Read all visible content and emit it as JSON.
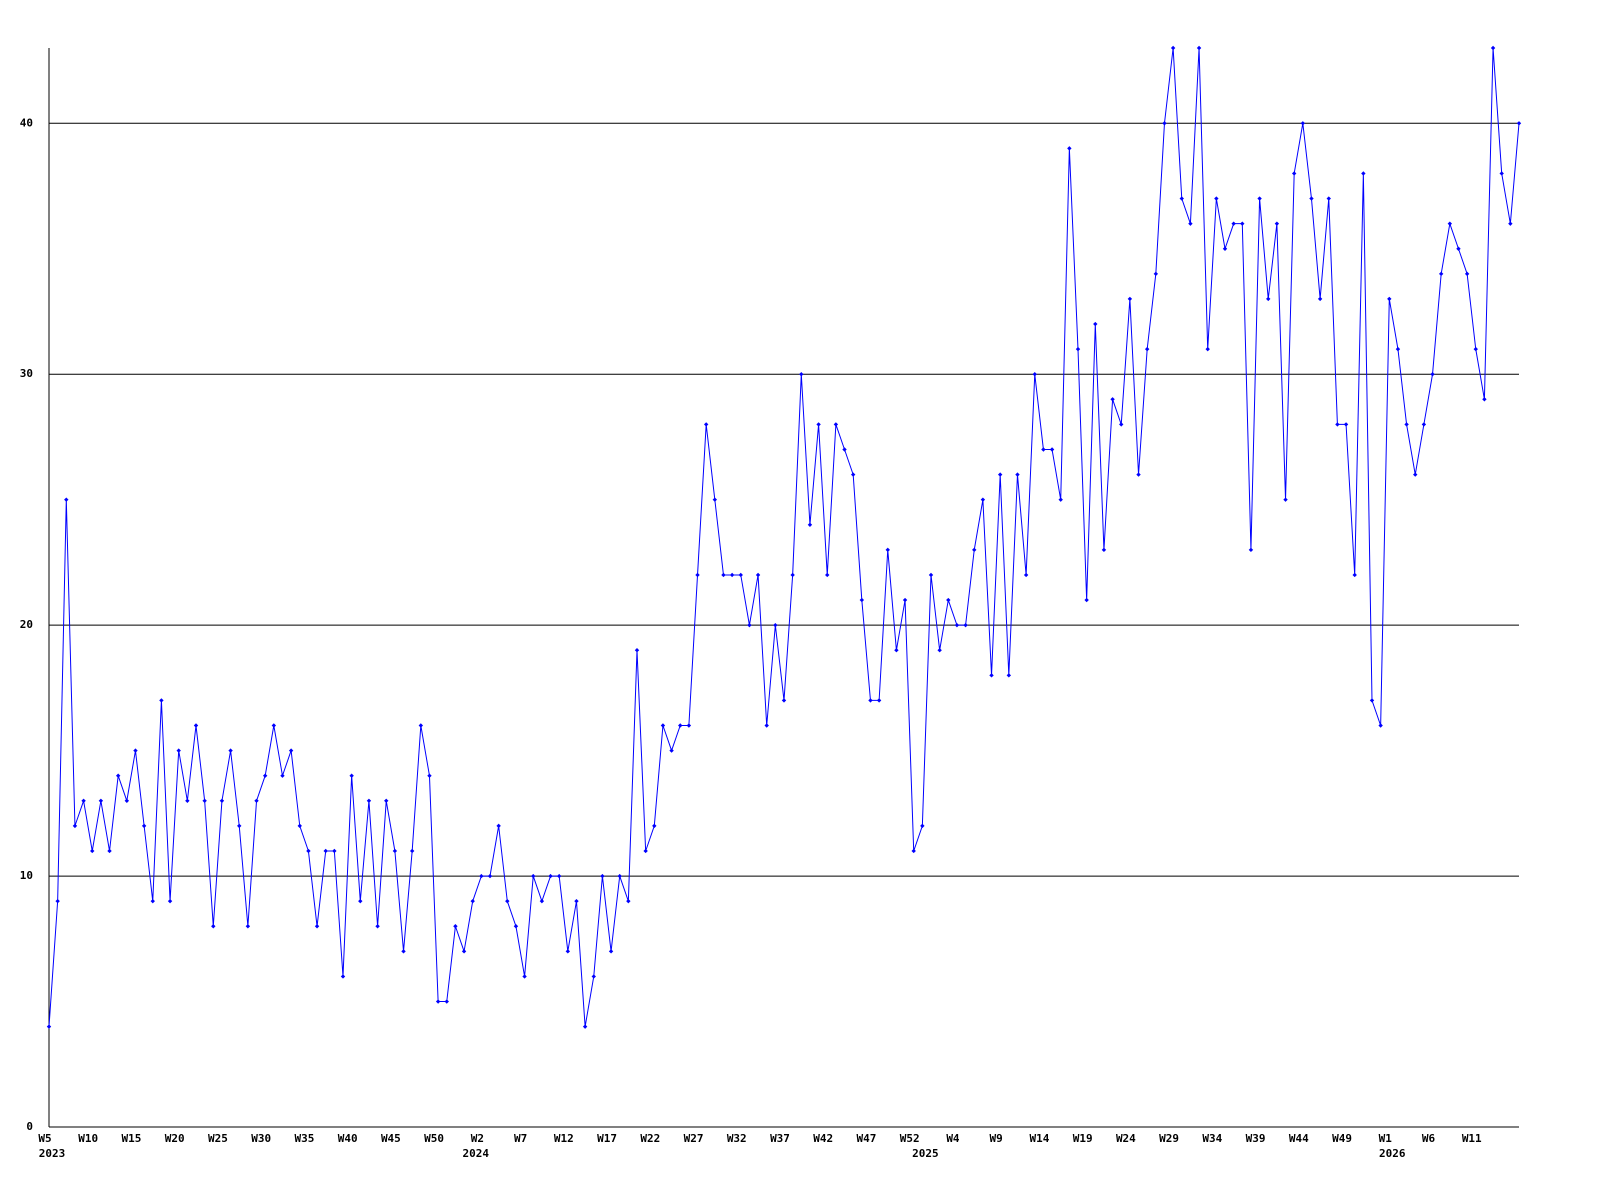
{
  "chart_data": {
    "type": "line",
    "categories": [
      "W5",
      null,
      null,
      null,
      null,
      "W10",
      null,
      null,
      null,
      null,
      "W15",
      null,
      null,
      null,
      null,
      "W20",
      null,
      null,
      null,
      null,
      "W25",
      null,
      null,
      null,
      null,
      "W30",
      null,
      null,
      null,
      null,
      "W35",
      null,
      null,
      null,
      null,
      "W40",
      null,
      null,
      null,
      null,
      "W45",
      null,
      null,
      null,
      null,
      "W50",
      null,
      null,
      null,
      null,
      "W2",
      null,
      null,
      null,
      null,
      "W7",
      null,
      null,
      null,
      null,
      "W12",
      null,
      null,
      null,
      null,
      "W17",
      null,
      null,
      null,
      null,
      "W22",
      null,
      null,
      null,
      null,
      "W27",
      null,
      null,
      null,
      null,
      "W32",
      null,
      null,
      null,
      null,
      "W37",
      null,
      null,
      null,
      null,
      "W42",
      null,
      null,
      null,
      null,
      "W47",
      null,
      null,
      null,
      null,
      "W52",
      null,
      null,
      null,
      null,
      "W4",
      null,
      null,
      null,
      null,
      "W9",
      null,
      null,
      null,
      null,
      "W14",
      null,
      null,
      null,
      null,
      "W19",
      null,
      null,
      null,
      null,
      "W24",
      null,
      null,
      null,
      null,
      "W29",
      null,
      null,
      null,
      null,
      "W34",
      null,
      null,
      null,
      null,
      "W39",
      null,
      null,
      null,
      null,
      "W44",
      null,
      null,
      null,
      null,
      "W49",
      null,
      null,
      null,
      null,
      "W1",
      null,
      null,
      null,
      null,
      "W6",
      null,
      null,
      null,
      null,
      "W11",
      null,
      null,
      null,
      null,
      null
    ],
    "category_years": [
      "2023",
      null,
      null,
      null,
      null,
      null,
      null,
      null,
      null,
      null,
      null,
      null,
      null,
      null,
      null,
      null,
      null,
      null,
      null,
      null,
      null,
      null,
      null,
      null,
      null,
      null,
      null,
      null,
      null,
      null,
      null,
      null,
      null,
      null,
      null,
      null,
      null,
      null,
      null,
      null,
      null,
      null,
      null,
      null,
      null,
      null,
      null,
      null,
      null,
      "2024",
      null,
      null,
      null,
      null,
      null,
      null,
      null,
      null,
      null,
      null,
      null,
      null,
      null,
      null,
      null,
      null,
      null,
      null,
      null,
      null,
      null,
      null,
      null,
      null,
      null,
      null,
      null,
      null,
      null,
      null,
      null,
      null,
      null,
      null,
      null,
      null,
      null,
      null,
      null,
      null,
      null,
      null,
      null,
      null,
      null,
      null,
      null,
      null,
      null,
      null,
      null,
      "2025",
      null,
      null,
      null,
      null,
      null,
      null,
      null,
      null,
      null,
      null,
      null,
      null,
      null,
      null,
      null,
      null,
      null,
      null,
      null,
      null,
      null,
      null,
      null,
      null,
      null,
      null,
      null,
      null,
      null,
      null,
      null,
      null,
      null,
      null,
      null,
      null,
      null,
      null,
      null,
      null,
      null,
      null,
      null,
      null,
      null,
      null,
      null,
      null,
      null,
      null,
      null,
      null,
      null,
      "2026",
      null,
      null,
      null,
      null,
      null,
      null,
      null,
      null,
      null,
      null,
      null,
      null,
      null,
      null,
      null
    ],
    "series": [
      {
        "color": "#0000ff",
        "values": [
          4,
          9,
          25,
          12,
          13,
          11,
          13,
          11,
          14,
          13,
          15,
          12,
          9,
          17,
          9,
          15,
          13,
          16,
          13,
          8,
          13,
          15,
          12,
          8,
          13,
          14,
          16,
          14,
          15,
          12,
          11,
          8,
          11,
          11,
          6,
          14,
          9,
          13,
          8,
          13,
          11,
          7,
          11,
          16,
          14,
          5,
          5,
          8,
          7,
          9,
          10,
          10,
          12,
          9,
          8,
          6,
          10,
          9,
          10,
          10,
          7,
          9,
          4,
          6,
          10,
          7,
          10,
          9,
          19,
          11,
          12,
          16,
          15,
          16,
          16,
          22,
          28,
          25,
          22,
          22,
          22,
          20,
          22,
          16,
          20,
          17,
          22,
          30,
          24,
          28,
          22,
          28,
          27,
          26,
          21,
          17,
          17,
          23,
          19,
          21,
          11,
          12,
          22,
          19,
          21,
          20,
          20,
          23,
          25,
          18,
          26,
          18,
          26,
          22,
          30,
          27,
          27,
          25,
          39,
          31,
          21,
          32,
          23,
          29,
          28,
          33,
          26,
          31,
          34,
          40,
          43,
          37,
          36,
          43,
          31,
          37,
          35,
          36,
          36,
          23,
          37,
          33,
          36,
          25,
          38,
          40,
          37,
          33,
          37,
          28,
          28,
          22,
          38,
          17,
          16,
          33,
          31,
          28,
          26,
          28,
          30,
          34,
          36,
          35,
          34,
          31,
          29,
          43,
          38,
          36,
          40
        ]
      }
    ],
    "ylim": [
      0,
      43
    ],
    "yticks": [
      0,
      10,
      20,
      30,
      40
    ],
    "grid": true
  }
}
